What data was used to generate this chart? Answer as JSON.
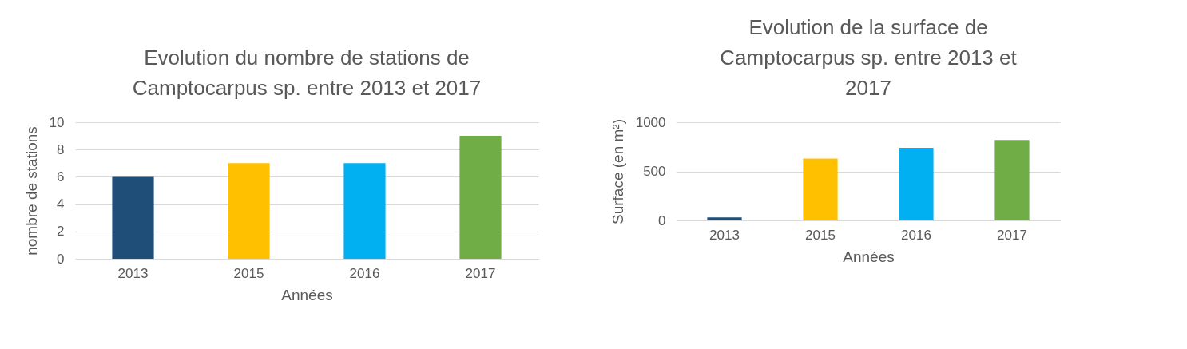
{
  "chart_data": [
    {
      "type": "bar",
      "title": "Evolution du nombre de stations de Camptocarpus sp. entre 2013 et 2017",
      "xlabel": "Années",
      "ylabel": "nombre de stations",
      "categories": [
        "2013",
        "2015",
        "2016",
        "2017"
      ],
      "values": [
        6,
        7,
        7,
        9
      ],
      "colors": [
        "#1f4e79",
        "#ffc000",
        "#00b0f0",
        "#70ad47"
      ],
      "ylim": [
        0,
        10
      ],
      "yticks": [
        0,
        2,
        4,
        6,
        8,
        10
      ],
      "grid": "y",
      "legend": false
    },
    {
      "type": "bar",
      "title": "Evolution de la surface de Camptocarpus sp. entre 2013 et 2017",
      "xlabel": "Années",
      "ylabel": "Surface (en m²)",
      "categories": [
        "2013",
        "2015",
        "2016",
        "2017"
      ],
      "values": [
        30,
        630,
        740,
        820
      ],
      "colors": [
        "#1f4e79",
        "#ffc000",
        "#00b0f0",
        "#70ad47"
      ],
      "ylim": [
        0,
        1000
      ],
      "yticks": [
        0,
        500,
        1000
      ],
      "grid": "y",
      "legend": false
    }
  ]
}
